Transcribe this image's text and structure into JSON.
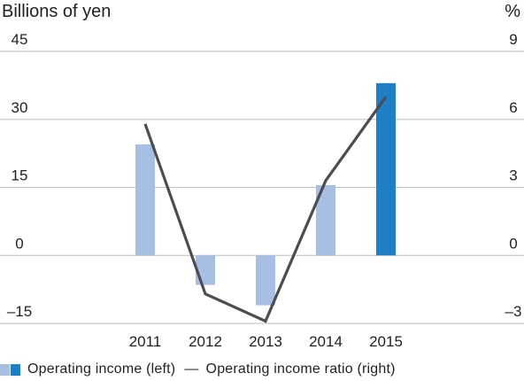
{
  "chart_data": {
    "type": "bar",
    "left_axis_title": "Billions of yen",
    "right_axis_title": "%",
    "categories": [
      "2011",
      "2012",
      "2013",
      "2014",
      "2015"
    ],
    "left_axis": {
      "min": -15,
      "max": 45,
      "ticks": [
        "45",
        "30",
        "15",
        "0",
        "–15"
      ],
      "tick_values": [
        45,
        30,
        15,
        0,
        -15
      ]
    },
    "right_axis": {
      "min": -3,
      "max": 9,
      "ticks": [
        "9",
        "6",
        "3",
        "0",
        "–3"
      ],
      "tick_values": [
        9,
        6,
        3,
        0,
        -3
      ]
    },
    "series": [
      {
        "name": "Operating income (left)",
        "type": "bar",
        "axis": "left",
        "values": [
          24.5,
          -6.5,
          -11,
          15.5,
          38
        ],
        "colors": [
          "#a7bfe3",
          "#a7bfe3",
          "#a7bfe3",
          "#a7bfe3",
          "#1f7fc6"
        ]
      },
      {
        "name": "Operating income ratio (right)",
        "type": "line",
        "axis": "right",
        "values": [
          5.8,
          -1.7,
          -2.9,
          3.3,
          7.0
        ],
        "color": "#4d4d4f"
      }
    ],
    "grid": true,
    "legend": "bottom-left"
  },
  "legend": {
    "bar_label": "Operating income (left)",
    "line_dash": "—",
    "line_label": "Operating income ratio (right)"
  }
}
